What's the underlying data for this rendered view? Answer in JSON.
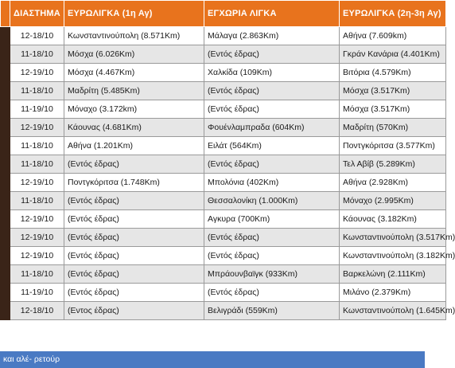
{
  "headers": {
    "period": "ΔΙΑΣΤΗΜΑ",
    "euroleague1": "ΕΥΡΩΛΙΓΚΑ (1η Αγ)",
    "domestic": "ΕΓΧΩΡΙΑ ΛΙΓΚΑ",
    "euroleague2": "ΕΥΡΩΛΙΓΚΑ (2η-3η Αγ)"
  },
  "rows": [
    {
      "period": "12-18/10",
      "euroleague1": "Κωνσταντινούπολη (8.571Km)",
      "domestic": "Μάλαγα (2.863Km)",
      "euroleague2": "Αθήνα (7.609km)"
    },
    {
      "period": "11-18/10",
      "euroleague1": "Μόσχα (6.026Km)",
      "domestic": "(Εντός έδρας)",
      "euroleague2": "Γκράν Κανάρια (4.401Km)"
    },
    {
      "period": "12-19/10",
      "euroleague1": "Μόσχα (4.467Km)",
      "domestic": "Χαλκίδα (109Km)",
      "euroleague2": "Βιτόρια (4.579Km)"
    },
    {
      "period": "11-18/10",
      "euroleague1": "Μαδρίτη (5.485Km)",
      "domestic": "(Εντός έδρας)",
      "euroleague2": "Μόσχα (3.517Km)"
    },
    {
      "period": "11-19/10",
      "euroleague1": "Μόναχο (3.172km)",
      "domestic": "(Εντός έδρας)",
      "euroleague2": "Μόσχα (3.517Km)"
    },
    {
      "period": "12-19/10",
      "euroleague1": "Κάουνας (4.681Km)",
      "domestic": "Φουένλαμπραδα (604Km)",
      "euroleague2": "Μαδρίτη (570Km)"
    },
    {
      "period": "11-18/10",
      "euroleague1": "Αθήνα (1.201Km)",
      "domestic": "Ειλάτ (564Km)",
      "euroleague2": "Ποντγκόριτσα (3.577Km)"
    },
    {
      "period": "11-18/10",
      "euroleague1": "(Εντός έδρας)",
      "domestic": "(Εντός έδρας)",
      "euroleague2": "Τελ Αβίβ (5.289Km)"
    },
    {
      "period": "12-19/10",
      "euroleague1": "Ποντγκόριτσα (1.748Km)",
      "domestic": "Μπολόνια (402Km)",
      "euroleague2": "Αθήνα (2.928Km)"
    },
    {
      "period": "11-18/10",
      "euroleague1": "(Εντός έδρας)",
      "domestic": "Θεσσαλονίκη (1.000Km)",
      "euroleague2": "Μόναχο (2.995Km)"
    },
    {
      "period": "12-19/10",
      "euroleague1": "(Εντός έδρας)",
      "domestic": "Αγκυρα (700Km)",
      "euroleague2": "Κάουνας (3.182Km)"
    },
    {
      "period": "12-19/10",
      "euroleague1": "(Εντός έδρας)",
      "domestic": "(Εντός έδρας)",
      "euroleague2": "Κωνσταντινούπολη (3.517Km)"
    },
    {
      "period": "12-19/10",
      "euroleague1": "(Εντός έδρας)",
      "domestic": "(Εντός έδρας)",
      "euroleague2": "Κωνσταντινούπολη (3.182Km)"
    },
    {
      "period": "11-18/10",
      "euroleague1": "(Εντός έδρας)",
      "domestic": "Μπράουνβαϊγκ (933Km)",
      "euroleague2": "Βαρκελώνη (2.111Km)"
    },
    {
      "period": "11-19/10",
      "euroleague1": "(Εντός έδρας)",
      "domestic": "(Εντός έδρας)",
      "euroleague2": "Μιλάνο (2.379Km)"
    },
    {
      "period": "12-18/10",
      "euroleague1": "(Εντος έδρας)",
      "domestic": "Βελιγράδι (559Km)",
      "euroleague2": "Κωνσταντινούπολη (1.645Km)"
    }
  ],
  "footer": "και αλέ- ρετούρ",
  "colors": {
    "header": "#e8731d",
    "stripe": "#3a2418",
    "row_alt": "#e6e6e6",
    "footer": "#4a7ac3"
  }
}
